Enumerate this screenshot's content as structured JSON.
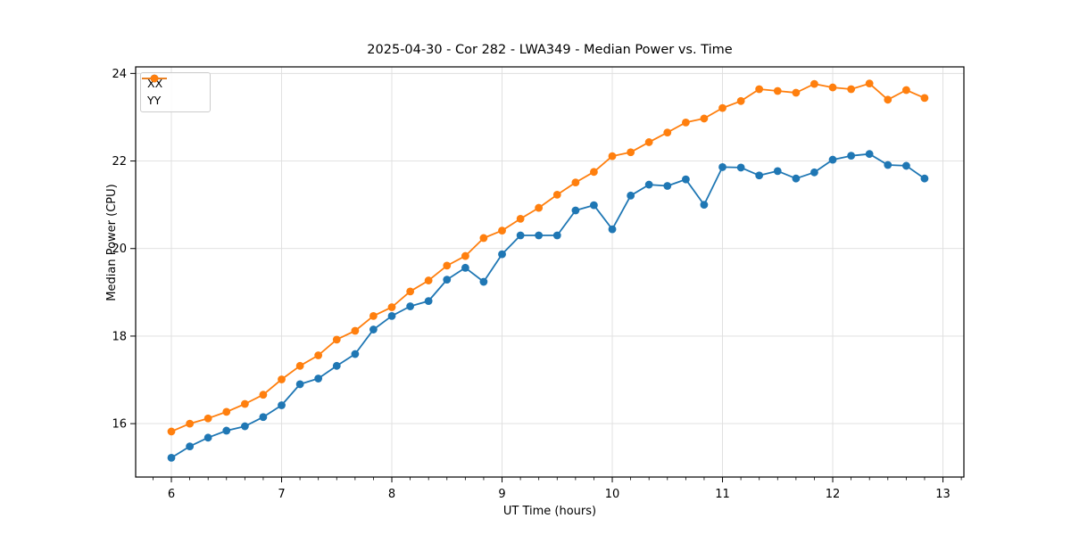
{
  "chart_data": {
    "type": "line",
    "title": "2025-04-30 - Cor 282 - LWA349 - Median Power vs. Time",
    "xlabel": "UT Time (hours)",
    "ylabel": "Median Power (CPU)",
    "xlim": [
      5.676,
      13.19
    ],
    "ylim": [
      14.78,
      24.15
    ],
    "x_ticks": [
      6,
      7,
      8,
      9,
      10,
      11,
      12,
      13
    ],
    "y_ticks": [
      16,
      18,
      20,
      22,
      24
    ],
    "x_minor_step": 0.166667,
    "grid": true,
    "grid_color": "#dedede",
    "legend_position": "upper-left",
    "x": [
      6.0,
      6.167,
      6.333,
      6.5,
      6.667,
      6.833,
      7.0,
      7.167,
      7.333,
      7.5,
      7.667,
      7.833,
      8.0,
      8.167,
      8.333,
      8.5,
      8.667,
      8.833,
      9.0,
      9.167,
      9.333,
      9.5,
      9.667,
      9.833,
      10.0,
      10.167,
      10.333,
      10.5,
      10.667,
      10.833,
      11.0,
      11.167,
      11.333,
      11.5,
      11.667,
      11.833,
      12.0,
      12.167,
      12.333,
      12.5,
      12.667,
      12.833
    ],
    "series": [
      {
        "name": "XX",
        "color": "#1f77b4",
        "values": [
          15.22,
          15.48,
          15.68,
          15.84,
          15.94,
          16.15,
          16.42,
          16.9,
          17.03,
          17.32,
          17.59,
          18.15,
          18.46,
          18.68,
          18.8,
          19.29,
          19.56,
          19.24,
          19.87,
          20.3,
          20.3,
          20.3,
          20.87,
          20.99,
          20.44,
          21.21,
          21.46,
          21.43,
          21.58,
          21.0,
          21.86,
          21.85,
          21.67,
          21.77,
          21.6,
          21.74,
          22.03,
          22.12,
          22.16,
          21.91,
          21.89,
          21.6
        ]
      },
      {
        "name": "YY",
        "color": "#ff7f0e",
        "values": [
          15.82,
          16.0,
          16.12,
          16.27,
          16.45,
          16.66,
          17.01,
          17.32,
          17.56,
          17.92,
          18.12,
          18.46,
          18.66,
          19.02,
          19.27,
          19.61,
          19.83,
          20.24,
          20.41,
          20.68,
          20.93,
          21.23,
          21.51,
          21.75,
          22.11,
          22.2,
          22.43,
          22.65,
          22.88,
          22.97,
          23.21,
          23.37,
          23.64,
          23.6,
          23.56,
          23.76,
          23.68,
          23.64,
          23.77,
          23.4,
          23.62,
          23.44
        ]
      }
    ]
  }
}
